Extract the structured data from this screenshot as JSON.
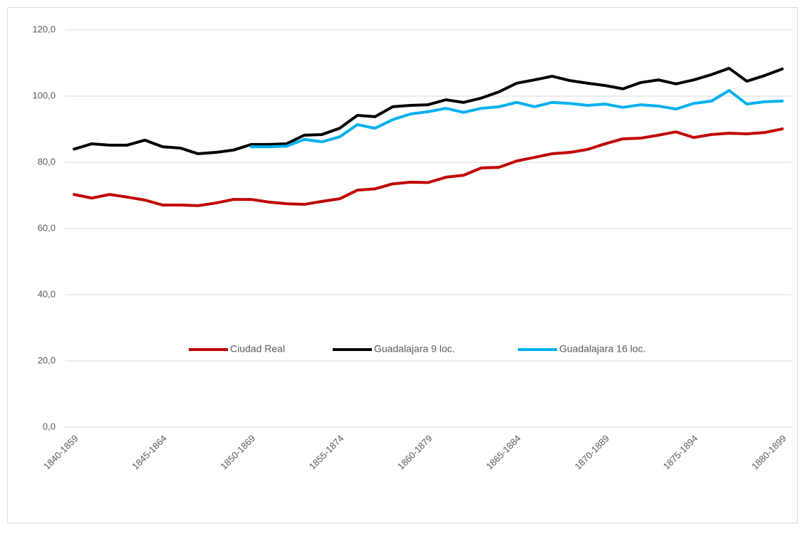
{
  "chart_data": {
    "type": "line",
    "categories": [
      "1840-1859",
      null,
      null,
      null,
      null,
      "1845-1864",
      null,
      null,
      null,
      null,
      "1850-1869",
      null,
      null,
      null,
      null,
      "1855-1874",
      null,
      null,
      null,
      null,
      "1860-1879",
      null,
      null,
      null,
      null,
      "1865-1884",
      null,
      null,
      null,
      null,
      "1870-1889",
      null,
      null,
      null,
      null,
      "1875-1894",
      null,
      null,
      null,
      null,
      "1880-1899"
    ],
    "series": [
      {
        "name": "Ciudad Real",
        "color": "#c00000",
        "values": [
          70.3,
          69.2,
          70.3,
          69.5,
          68.6,
          67.1,
          67.1,
          66.9,
          67.7,
          68.8,
          68.8,
          68.0,
          67.5,
          67.3,
          68.2,
          69.0,
          71.6,
          72.0,
          73.5,
          74.0,
          73.9,
          75.5,
          76.1,
          78.3,
          78.5,
          80.4,
          81.5,
          82.6,
          83.0,
          83.9,
          85.6,
          87.1,
          87.3,
          88.2,
          89.2,
          87.5,
          88.4,
          88.8,
          88.6,
          89.0,
          90.1
        ]
      },
      {
        "name": "Guadalajara 9 loc.",
        "color": "#000000",
        "values": [
          84.0,
          85.6,
          85.2,
          85.2,
          86.7,
          84.7,
          84.3,
          82.6,
          83.0,
          83.7,
          85.4,
          85.4,
          85.6,
          88.2,
          88.4,
          90.3,
          94.2,
          93.8,
          96.8,
          97.2,
          97.4,
          98.9,
          98.1,
          99.4,
          101.3,
          103.9,
          104.9,
          106.0,
          104.7,
          103.9,
          103.2,
          102.2,
          104.1,
          104.9,
          103.7,
          104.9,
          106.5,
          108.4,
          104.5,
          106.2,
          108.2
        ]
      },
      {
        "name": "Guadalajara 16 loc.",
        "color": "#00b0f0",
        "values": [
          null,
          null,
          null,
          null,
          null,
          null,
          null,
          null,
          null,
          null,
          84.7,
          84.7,
          84.9,
          86.9,
          86.2,
          87.7,
          91.4,
          90.3,
          92.9,
          94.6,
          95.3,
          96.3,
          95.1,
          96.3,
          96.8,
          98.1,
          96.8,
          98.1,
          97.8,
          97.2,
          97.6,
          96.6,
          97.4,
          97.0,
          96.1,
          97.8,
          98.5,
          101.7,
          97.6,
          98.3,
          98.5
        ]
      }
    ],
    "ylim": [
      0,
      120
    ],
    "yticks": [
      {
        "value": 0,
        "label": "0,0"
      },
      {
        "value": 20,
        "label": "20,0"
      },
      {
        "value": 40,
        "label": "40,0"
      },
      {
        "value": 60,
        "label": "60,0"
      },
      {
        "value": 80,
        "label": "80,0"
      },
      {
        "value": 100,
        "label": "100,0"
      },
      {
        "value": 120,
        "label": "120,0"
      }
    ],
    "grid": true,
    "legend": "center"
  }
}
